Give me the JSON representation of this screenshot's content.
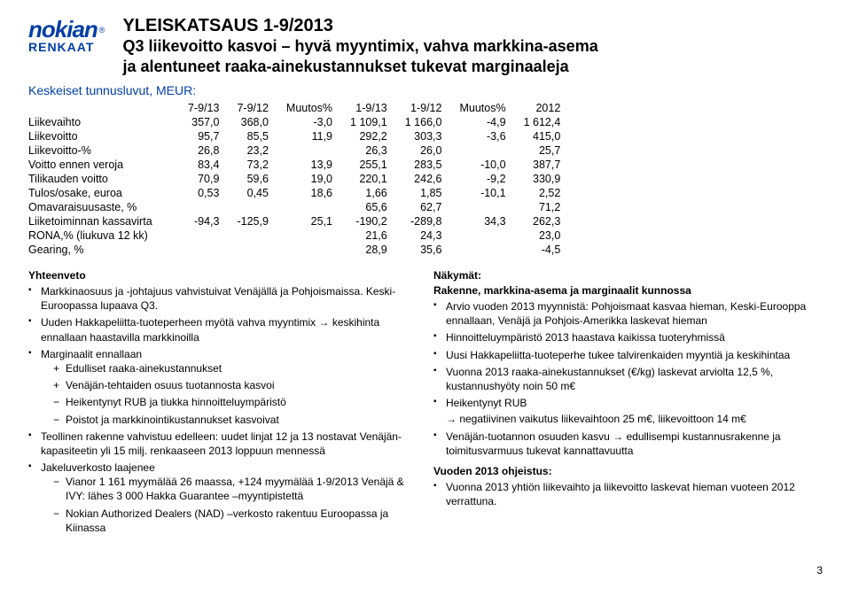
{
  "logo": {
    "name": "nokian",
    "sub": "RENKAAT",
    "tm": "®"
  },
  "heading": {
    "line1": "YLEISKATSAUS 1-9/2013",
    "line2a": "Q3 liikevoitto kasvoi – hyvä myyntimix, vahva markkina-asema",
    "line2b": "ja alentuneet raaka-ainekustannukset tukevat marginaaleja"
  },
  "sub_hdr": "Keskeiset tunnusluvut, MEUR:",
  "table": {
    "headers": [
      "7-9/13",
      "7-9/12",
      "Muutos%",
      "1-9/13",
      "1-9/12",
      "Muutos%",
      "2012"
    ],
    "rows": [
      {
        "label": "Liikevaihto",
        "v": [
          "357,0",
          "368,0",
          "-3,0",
          "1 109,1",
          "1 166,0",
          "-4,9",
          "1 612,4"
        ]
      },
      {
        "label": "Liikevoitto",
        "v": [
          "95,7",
          "85,5",
          "11,9",
          "292,2",
          "303,3",
          "-3,6",
          "415,0"
        ]
      },
      {
        "label": "Liikevoitto-%",
        "v": [
          "26,8",
          "23,2",
          "",
          "26,3",
          "26,0",
          "",
          "25,7"
        ]
      },
      {
        "label": "Voitto ennen veroja",
        "v": [
          "83,4",
          "73,2",
          "13,9",
          "255,1",
          "283,5",
          "-10,0",
          "387,7"
        ]
      },
      {
        "label": "Tilikauden voitto",
        "v": [
          "70,9",
          "59,6",
          "19,0",
          "220,1",
          "242,6",
          "-9,2",
          "330,9"
        ]
      },
      {
        "label": "Tulos/osake, euroa",
        "v": [
          "0,53",
          "0,45",
          "18,6",
          "1,66",
          "1,85",
          "-10,1",
          "2,52"
        ]
      },
      {
        "label": "Omavaraisuusaste, %",
        "v": [
          "",
          "",
          "",
          "65,6",
          "62,7",
          "",
          "71,2"
        ]
      },
      {
        "label": "Liiketoiminnan kassavirta",
        "v": [
          "-94,3",
          "-125,9",
          "25,1",
          "-190,2",
          "-289,8",
          "34,3",
          "262,3"
        ]
      },
      {
        "label": "RONA,% (liukuva 12 kk)",
        "v": [
          "",
          "",
          "",
          "21,6",
          "24,3",
          "",
          "23,0"
        ]
      },
      {
        "label": "Gearing, %",
        "v": [
          "",
          "",
          "",
          "28,9",
          "35,6",
          "",
          "-4,5"
        ]
      }
    ]
  },
  "left_col": {
    "title": "Yhteenveto",
    "items": [
      "Markkinaosuus ja -johtajuus vahvistuivat Venäjällä ja Pohjoismaissa. Keski-Euroopassa lupaava Q3.",
      "Uuden Hakkapeliitta-tuoteperheen myötä vahva myyntimix → keskihinta ennallaan haastavilla markkinoilla",
      "Marginaalit ennallaan",
      "Teollinen rakenne vahvistuu edelleen: uudet linjat 12 ja 13 nostavat Venäjän-kapasiteetin yli 15 milj. renkaaseen 2013 loppuun mennessä",
      "Jakeluverkosto laajenee"
    ],
    "margins_plus": [
      "Edulliset raaka-ainekustannukset",
      "Venäjän-tehtaiden osuus tuotannosta kasvoi"
    ],
    "margins_minus": [
      "Heikentynyt RUB ja tiukka hinnoitteluympäristö",
      "Poistot ja markkinointikustannukset kasvoivat"
    ],
    "jakelu_sub": [
      "Vianor 1 161 myymälää 26 maassa, +124 myymälää 1-9/2013 Venäjä & IVY: lähes 3 000 Hakka Guarantee –myyntipistettä",
      "Nokian Authorized Dealers (NAD) –verkosto rakentuu Euroopassa ja Kiinassa"
    ]
  },
  "right_col": {
    "title1": "Näkymät:",
    "title1b": "Rakenne, markkina-asema ja marginaalit kunnossa",
    "items1": [
      "Arvio vuoden 2013 myynnistä: Pohjoismaat kasvaa hieman, Keski-Eurooppa ennallaan, Venäjä ja Pohjois-Amerikka laskevat hieman",
      "Hinnoitteluympäristö 2013 haastava kaikissa tuoteryhmissä",
      "Uusi Hakkapeliitta-tuoteperhe tukee talvirenkaiden myyntiä ja keskihintaa",
      "Vuonna 2013 raaka-ainekustannukset (€/kg) laskevat arviolta 12,5 %, kustannushyöty noin 50 m€",
      "Heikentynyt RUB",
      "Venäjän-tuotannon osuuden kasvu → edullisempi kustannusrakenne ja toimitusvarmuus tukevat kannattavuutta"
    ],
    "rub_sub": "→ negatiivinen vaikutus liikevaihtoon 25 m€, liikevoittoon 14 m€",
    "title2": "Vuoden 2013 ohjeistus:",
    "items2": [
      "Vuonna 2013 yhtiön liikevaihto ja liikevoitto laskevat hieman vuoteen 2012 verrattuna."
    ]
  },
  "page_number": "3"
}
